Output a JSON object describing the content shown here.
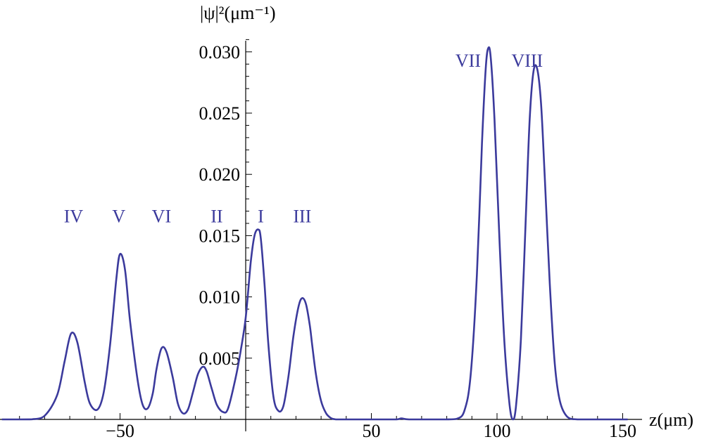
{
  "chart_data": {
    "type": "line",
    "title": "",
    "xlabel": "z(μm)",
    "ylabel": "|ψ|²(μm⁻¹)",
    "xlim": [
      -97,
      152
    ],
    "ylim": [
      -0.0002,
      0.0313
    ],
    "x_ticks": [
      -50,
      50,
      100,
      150
    ],
    "x_tick_labels": [
      "−50",
      "50",
      "100",
      "150"
    ],
    "y_ticks": [
      0.005,
      0.01,
      0.015,
      0.02,
      0.025,
      0.03
    ],
    "y_tick_labels": [
      "0.005",
      "0.010",
      "0.015",
      "0.020",
      "0.025",
      "0.030"
    ],
    "grid": false,
    "series": [
      {
        "color": "#3b3a9c",
        "x": [
          -97,
          -90,
          -85,
          -80,
          -75,
          -72,
          -69.5,
          -67,
          -64,
          -62,
          -59,
          -56.5,
          -54,
          -51.5,
          -50,
          -48,
          -46,
          -43,
          -41,
          -39,
          -37,
          -35.5,
          -33.5,
          -31.5,
          -29,
          -27,
          -25,
          -23,
          -21,
          -19,
          -17,
          -15.5,
          -13.5,
          -11.5,
          -9,
          -7,
          -4,
          -2,
          0,
          2,
          3.5,
          5,
          6,
          7.5,
          9,
          11,
          13,
          15,
          17,
          19,
          21,
          22.5,
          24,
          25.5,
          26.5,
          28,
          30,
          32,
          34,
          36,
          38,
          42,
          47,
          55,
          60,
          62,
          65,
          75,
          80,
          84,
          87,
          89.5,
          92,
          94,
          95.5,
          96.5,
          97.5,
          99,
          101,
          103,
          105,
          106.3,
          107.5,
          109.5,
          111.5,
          113,
          114.5,
          116,
          117.5,
          119,
          121,
          123,
          125,
          128,
          132,
          140,
          152
        ],
        "y": [
          0,
          0,
          1e-05,
          0.0003,
          0.002,
          0.0048,
          0.007,
          0.0063,
          0.003,
          0.0013,
          0.0008,
          0.0022,
          0.006,
          0.0114,
          0.0135,
          0.0122,
          0.008,
          0.0032,
          0.0012,
          0.0009,
          0.0021,
          0.0041,
          0.0058,
          0.0055,
          0.0034,
          0.0013,
          0.0005,
          0.0008,
          0.0022,
          0.0037,
          0.0043,
          0.0039,
          0.0025,
          0.0012,
          0.0006,
          0.0009,
          0.0034,
          0.0056,
          0.0083,
          0.0128,
          0.015,
          0.0155,
          0.0148,
          0.011,
          0.0062,
          0.0019,
          0.0007,
          0.0011,
          0.0035,
          0.0068,
          0.0092,
          0.0099,
          0.0094,
          0.0077,
          0.006,
          0.0036,
          0.0015,
          0.0005,
          0.0001,
          0,
          0,
          0,
          0,
          0,
          0,
          8e-05,
          0,
          0,
          0,
          5e-05,
          0.0007,
          0.0036,
          0.0118,
          0.0225,
          0.0286,
          0.0303,
          0.0295,
          0.0245,
          0.0145,
          0.0061,
          0.0012,
          0,
          0.001,
          0.0065,
          0.0168,
          0.0245,
          0.0284,
          0.0286,
          0.0258,
          0.0198,
          0.011,
          0.0045,
          0.0015,
          0.0002,
          0,
          0,
          0
        ]
      }
    ],
    "annotations": [
      {
        "text": "IV",
        "x": -68.5,
        "y": 0.0166
      },
      {
        "text": "V",
        "x": -50.5,
        "y": 0.0166
      },
      {
        "text": "VI",
        "x": -33.5,
        "y": 0.0166
      },
      {
        "text": "II",
        "x": -11.5,
        "y": 0.0166
      },
      {
        "text": "I",
        "x": 6,
        "y": 0.0166
      },
      {
        "text": "III",
        "x": 22.5,
        "y": 0.0166
      },
      {
        "text": "VII",
        "x": 88.5,
        "y": 0.0293
      },
      {
        "text": "VIII",
        "x": 112,
        "y": 0.0293
      }
    ]
  }
}
